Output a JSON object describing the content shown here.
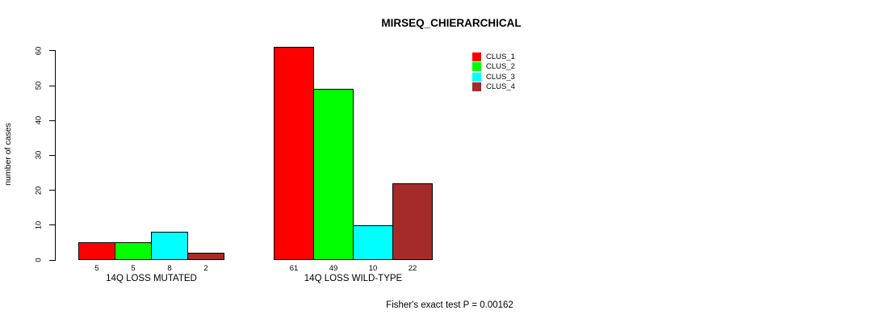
{
  "chart_data": {
    "type": "bar",
    "title": "MIRSEQ_CHIERARCHICAL",
    "xlabel": "",
    "ylabel": "number of cases",
    "ylim": [
      0,
      60
    ],
    "yticks": [
      0,
      10,
      20,
      30,
      40,
      50,
      60
    ],
    "grid": false,
    "legend_position": "top-right",
    "categories": [
      "14Q LOSS MUTATED",
      "14Q LOSS WILD-TYPE"
    ],
    "series": [
      {
        "name": "CLUS_1",
        "color": "#FF0000",
        "values": [
          5,
          61
        ]
      },
      {
        "name": "CLUS_2",
        "color": "#00FF00",
        "values": [
          5,
          49
        ]
      },
      {
        "name": "CLUS_3",
        "color": "#00FFFF",
        "values": [
          8,
          10
        ]
      },
      {
        "name": "CLUS_4",
        "color": "#A52A2A",
        "values": [
          2,
          22
        ]
      }
    ],
    "bar_value_labels": [
      [
        5,
        5,
        8,
        2
      ],
      [
        61,
        49,
        10,
        22
      ]
    ],
    "annotation": "Fisher's exact test P = 0.00162"
  }
}
